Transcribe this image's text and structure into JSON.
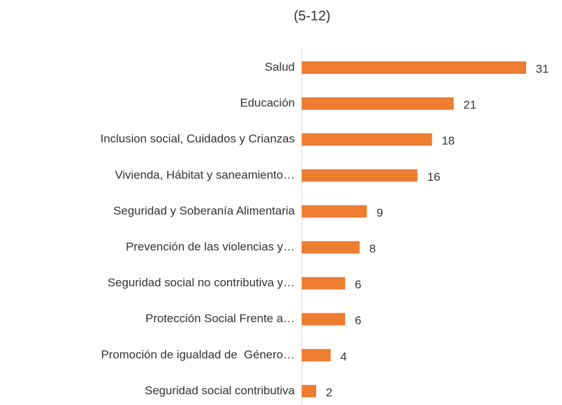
{
  "chart_data": {
    "type": "bar",
    "orientation": "horizontal",
    "title": "(5-12)",
    "categories": [
      "Salud",
      "Educación",
      "Inclusion social, Cuidados y Crianzas",
      "Vivienda, Hábitat y saneamiento…",
      "Seguridad y Soberanía Alimentaria",
      "Prevención de las violencias y…",
      "Seguridad social no contributiva y…",
      "Protección Social Frente a…",
      "Promoción de igualdad de  Género…",
      "Seguridad social contributiva"
    ],
    "values": [
      31,
      21,
      18,
      16,
      9,
      8,
      6,
      6,
      4,
      2
    ],
    "color": "#ed7d31"
  }
}
